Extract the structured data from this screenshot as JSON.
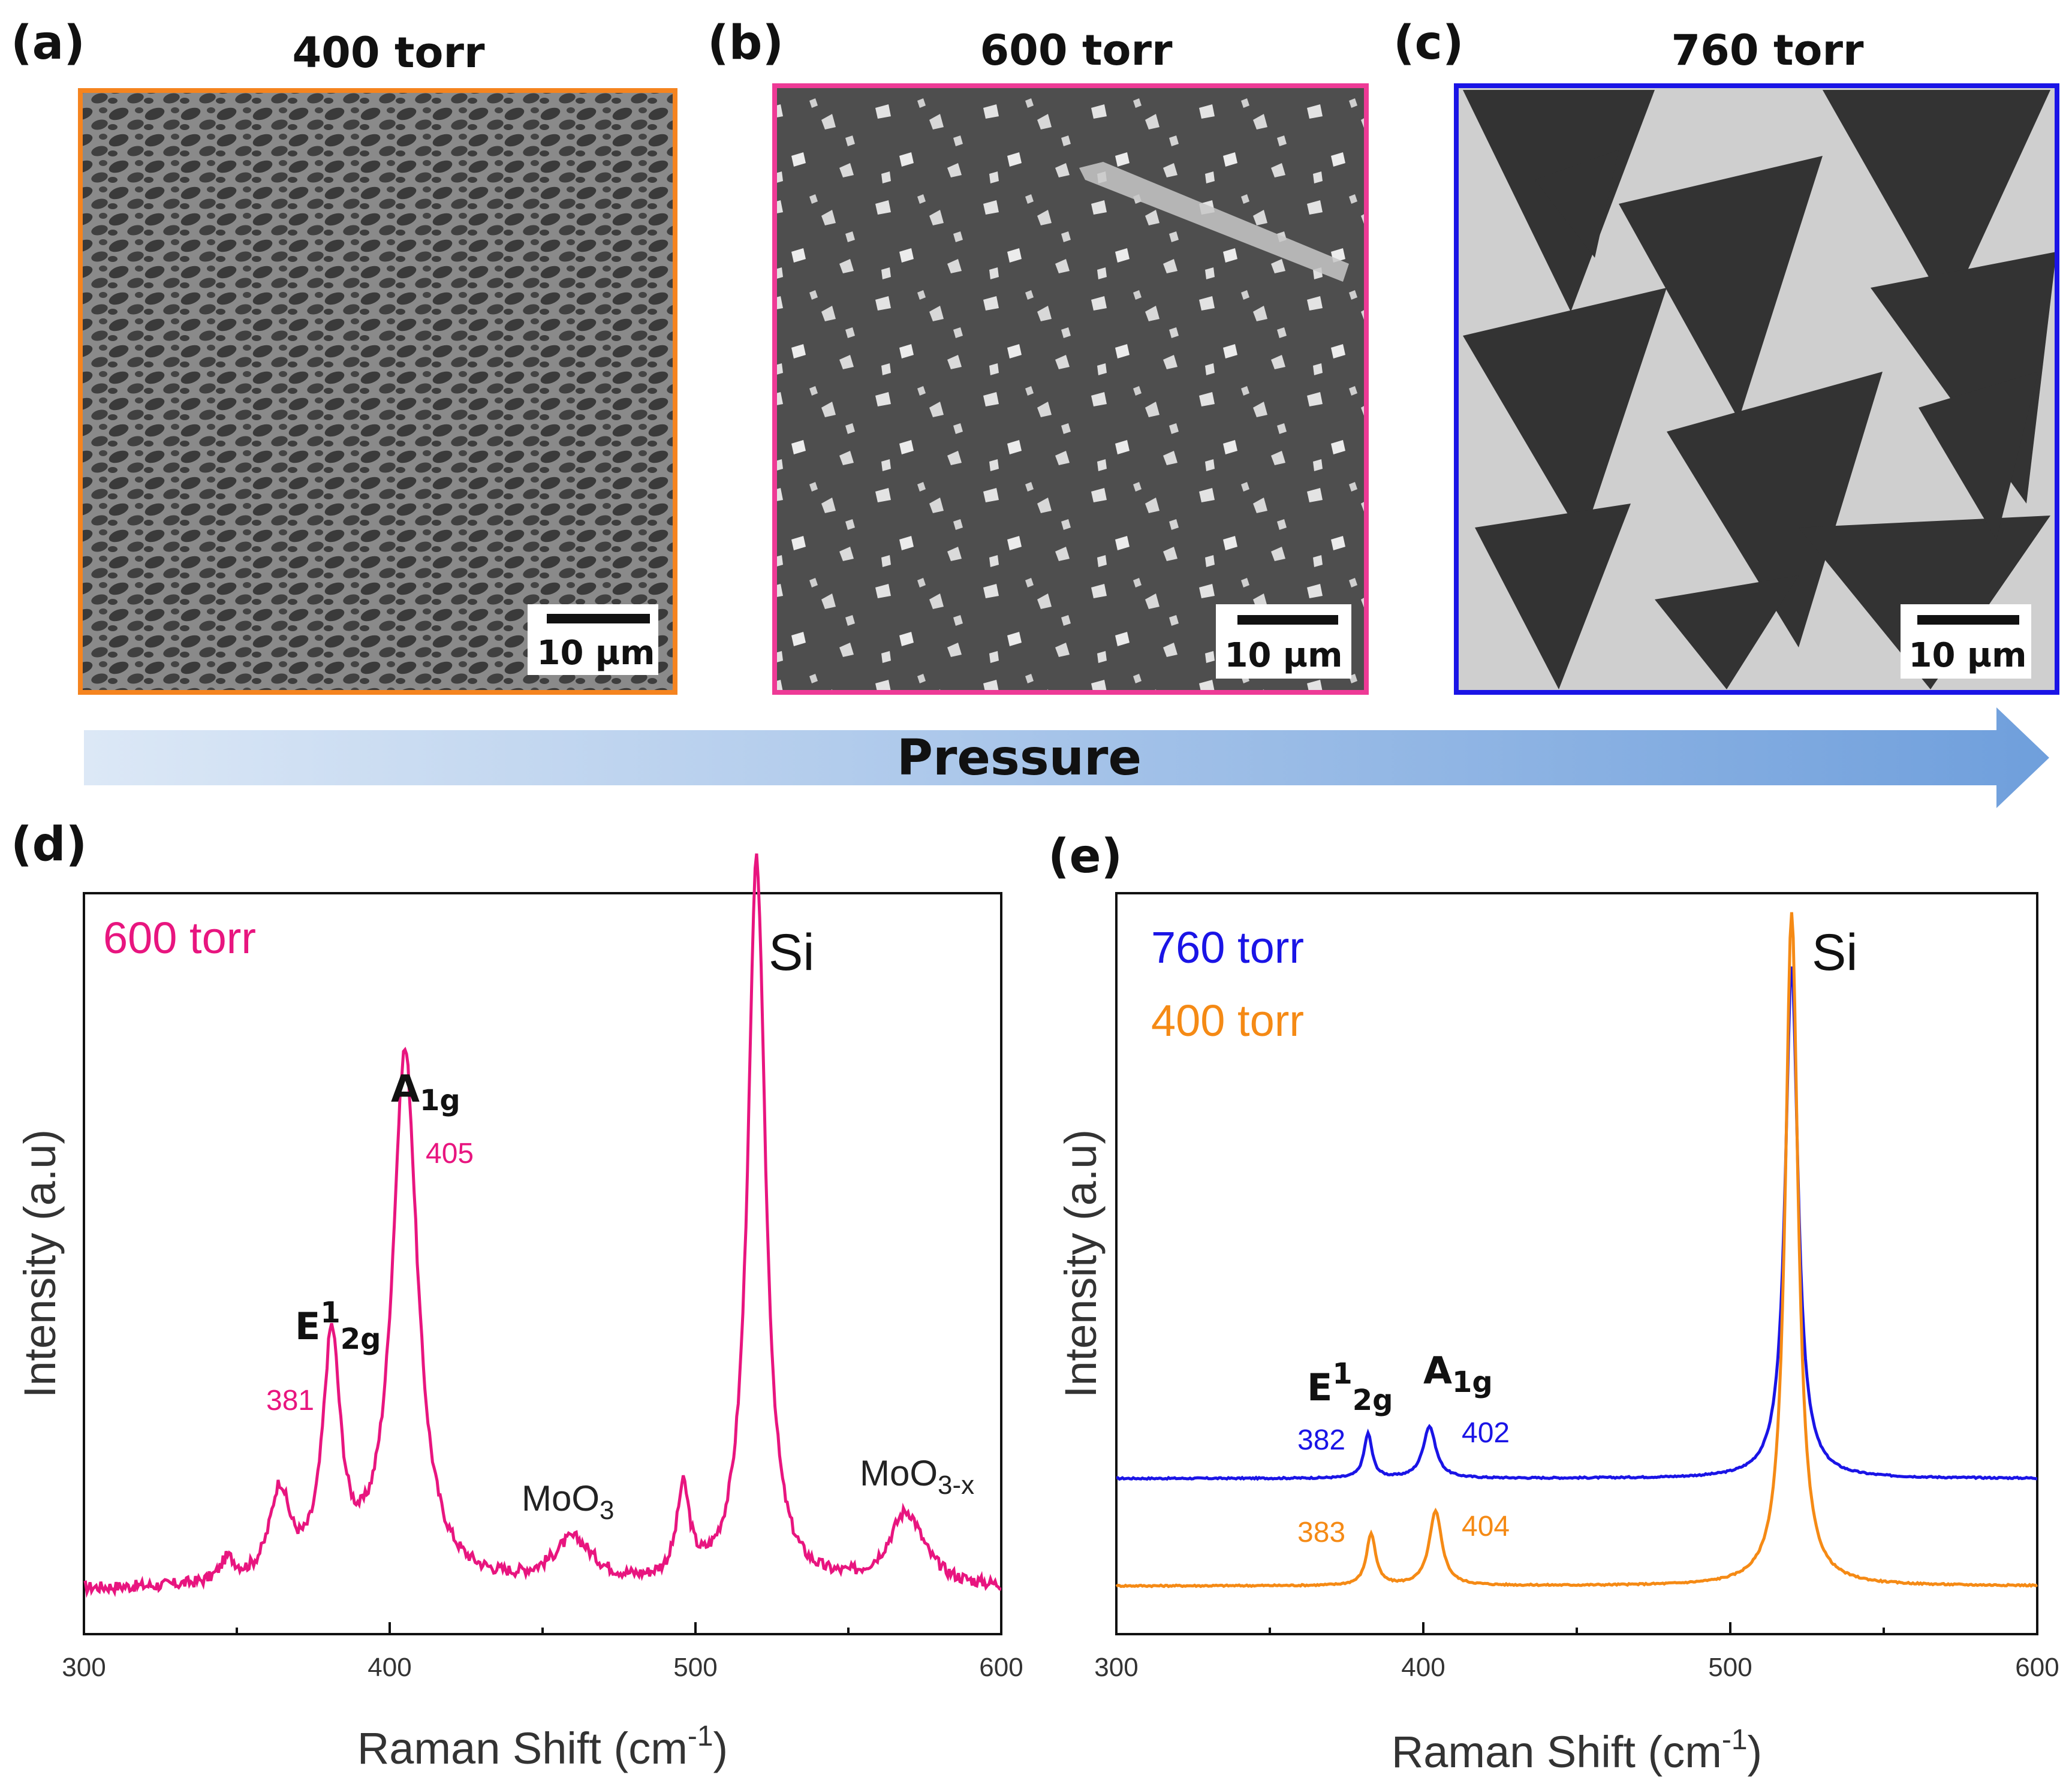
{
  "colors": {
    "orange": "#f5841f",
    "pink": "#e8157f",
    "blue": "#1a14e6",
    "arrow_start": "#dce8f6",
    "arrow_end": "#6f9fdc"
  },
  "panels": {
    "a": {
      "letter": "(a)",
      "title": "400 torr",
      "scale": "10 µm"
    },
    "b": {
      "letter": "(b)",
      "title": "600 torr",
      "scale": "10 µm"
    },
    "c": {
      "letter": "(c)",
      "title": "760 torr",
      "scale": "10 µm"
    },
    "d": {
      "letter": "(d)"
    },
    "e": {
      "letter": "(e)"
    }
  },
  "arrow": {
    "label": "Pressure"
  },
  "chart_data": [
    {
      "id": "d",
      "type": "line",
      "xlabel": "Raman Shift (cm",
      "xlabel_sup": "-1",
      "xlabel_end": ")",
      "ylabel": "Intensity (a.u)",
      "xlim": [
        300,
        600
      ],
      "ylim": [
        0,
        1
      ],
      "x_ticks": [
        "300",
        "400",
        "500",
        "600"
      ],
      "legend": [
        "600 torr"
      ],
      "series": [
        {
          "name": "600 torr",
          "color": "#e8157f",
          "baseline": 0.06,
          "peaks": [
            {
              "center": 347,
              "height": 0.03,
              "width": 3
            },
            {
              "center": 364,
              "height": 0.12,
              "width": 4
            },
            {
              "center": 381,
              "height": 0.32,
              "width": 3.5
            },
            {
              "center": 405,
              "height": 0.72,
              "width": 5
            },
            {
              "center": 460,
              "height": 0.06,
              "width": 8
            },
            {
              "center": 496,
              "height": 0.12,
              "width": 2.5
            },
            {
              "center": 520,
              "height": 0.98,
              "width": 3.5
            },
            {
              "center": 569,
              "height": 0.1,
              "width": 7
            }
          ],
          "noise": 0.008
        }
      ],
      "annotations": {
        "si": "Si",
        "a1g_main": "A",
        "a1g_sub": "1g",
        "e2g_main": "E",
        "e2g_sup": "1",
        "e2g_sub": "2g",
        "p381": "381",
        "p405": "405",
        "moo3_main": "MoO",
        "moo3_sub": "3",
        "moo3x_main": "MoO",
        "moo3x_sub": "3-x"
      }
    },
    {
      "id": "e",
      "type": "line",
      "xlabel": "Raman Shift (cm",
      "xlabel_sup": "-1",
      "xlabel_end": ")",
      "ylabel": "Intensity (a.u)",
      "xlim": [
        300,
        600
      ],
      "ylim": [
        0,
        1
      ],
      "x_ticks": [
        "300",
        "400",
        "500",
        "600"
      ],
      "legend": [
        "760 torr",
        "400 torr"
      ],
      "series": [
        {
          "name": "760 torr",
          "color": "#1a14e6",
          "baseline": 0.21,
          "peaks": [
            {
              "center": 382,
              "height": 0.06,
              "width": 1.6
            },
            {
              "center": 402,
              "height": 0.07,
              "width": 2.5
            },
            {
              "center": 520,
              "height": 0.69,
              "width": 2.5
            }
          ],
          "noise": 0.001
        },
        {
          "name": "400 torr",
          "color": "#f58a15",
          "baseline": 0.065,
          "peaks": [
            {
              "center": 383,
              "height": 0.07,
              "width": 1.8
            },
            {
              "center": 404,
              "height": 0.1,
              "width": 2.5
            },
            {
              "center": 520,
              "height": 0.91,
              "width": 2.5
            }
          ],
          "noise": 0.001
        }
      ],
      "annotations": {
        "si": "Si",
        "a1g_main": "A",
        "a1g_sub": "1g",
        "e2g_main": "E",
        "e2g_sup": "1",
        "e2g_sub": "2g",
        "p382": "382",
        "p402": "402",
        "p383": "383",
        "p404": "404"
      }
    }
  ]
}
